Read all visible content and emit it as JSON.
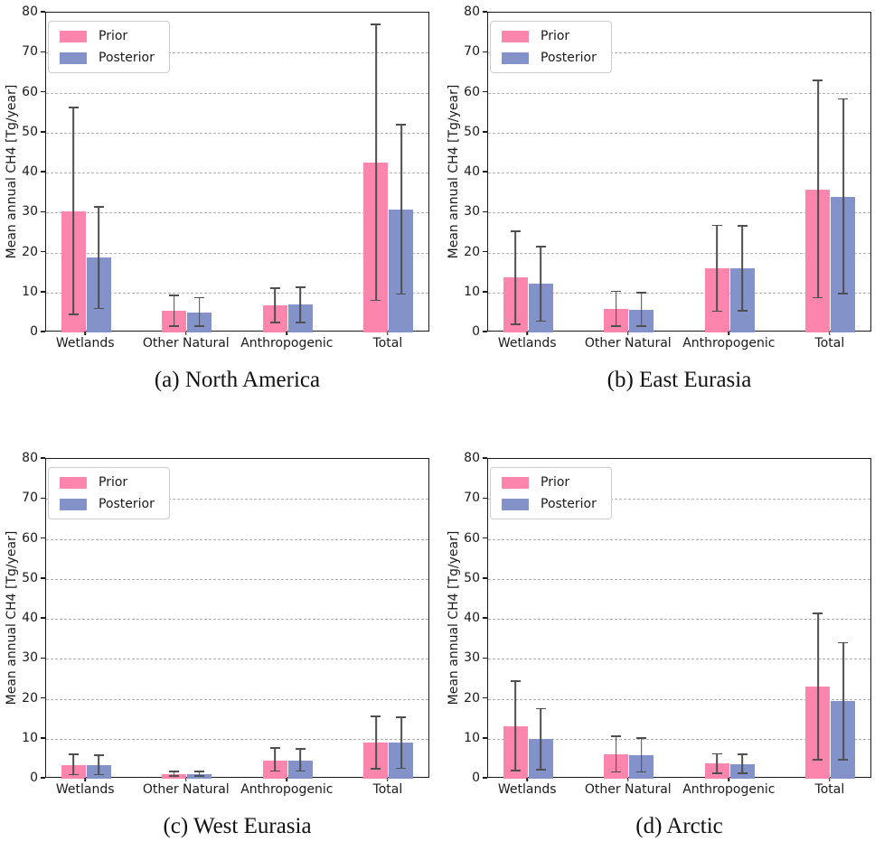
{
  "figure": {
    "legend": {
      "prior_label": "Prior",
      "posterior_label": "Posterior",
      "position": "upper left"
    },
    "yticks": [
      0,
      10,
      20,
      30,
      40,
      50,
      60,
      70,
      80
    ],
    "colors": {
      "prior": "#fb85ad",
      "posterior": "#8392c8",
      "error": "#4f4f4f",
      "gridline": "#b0b0b0",
      "spine": "#1a1a1a"
    }
  },
  "chart_data": [
    {
      "id": "a",
      "type": "bar",
      "title": "(a) North America",
      "ylabel": "Mean annual CH4 [Tg/year]",
      "xlabel": "",
      "ylim": [
        0,
        80
      ],
      "grid": true,
      "categories": [
        "Wetlands",
        "Other Natural",
        "Anthropogenic",
        "Total"
      ],
      "series": [
        {
          "name": "Prior",
          "values": [
            30.3,
            5.4,
            6.8,
            42.5
          ],
          "err_low": [
            4.3,
            1.4,
            2.2,
            7.8
          ],
          "err_high": [
            56.4,
            9.5,
            11.3,
            77.3
          ]
        },
        {
          "name": "Posterior",
          "values": [
            18.7,
            5.0,
            6.9,
            30.8
          ],
          "err_low": [
            5.8,
            1.3,
            2.3,
            9.4
          ],
          "err_high": [
            31.7,
            8.9,
            11.5,
            52.2
          ]
        }
      ]
    },
    {
      "id": "b",
      "type": "bar",
      "title": "(b) East Eurasia",
      "ylabel": "Mean annual CH4 [Tg/year]",
      "xlabel": "",
      "ylim": [
        0,
        80
      ],
      "grid": true,
      "categories": [
        "Wetlands",
        "Other Natural",
        "Anthropogenic",
        "Total"
      ],
      "series": [
        {
          "name": "Prior",
          "values": [
            13.7,
            5.9,
            16.1,
            35.8
          ],
          "err_low": [
            1.9,
            1.4,
            5.1,
            8.5
          ],
          "err_high": [
            25.5,
            10.5,
            27.0,
            63.2
          ]
        },
        {
          "name": "Posterior",
          "values": [
            12.1,
            5.6,
            16.0,
            34.0
          ],
          "err_low": [
            2.6,
            1.4,
            5.3,
            9.5
          ],
          "err_high": [
            21.6,
            10.1,
            26.8,
            58.6
          ]
        }
      ]
    },
    {
      "id": "c",
      "type": "bar",
      "title": "(c) West Eurasia",
      "ylabel": "Mean annual CH4 [Tg/year]",
      "xlabel": "",
      "ylim": [
        0,
        80
      ],
      "grid": true,
      "categories": [
        "Wetlands",
        "Other Natural",
        "Anthropogenic",
        "Total"
      ],
      "series": [
        {
          "name": "Prior",
          "values": [
            3.4,
            1.2,
            4.6,
            9.1
          ],
          "err_low": [
            0.8,
            0.4,
            1.7,
            2.3
          ],
          "err_high": [
            6.3,
            2.1,
            7.8,
            15.8
          ]
        },
        {
          "name": "Posterior",
          "values": [
            3.3,
            1.1,
            4.6,
            9.0
          ],
          "err_low": [
            0.8,
            0.4,
            1.7,
            2.4
          ],
          "err_high": [
            6.0,
            2.1,
            7.7,
            15.5
          ]
        }
      ]
    },
    {
      "id": "d",
      "type": "bar",
      "title": "(d) Arctic",
      "ylabel": "Mean annual CH4 [Tg/year]",
      "xlabel": "",
      "ylim": [
        0,
        80
      ],
      "grid": true,
      "categories": [
        "Wetlands",
        "Other Natural",
        "Anthropogenic",
        "Total"
      ],
      "series": [
        {
          "name": "Prior",
          "values": [
            13.2,
            6.2,
            3.8,
            23.1
          ],
          "err_low": [
            1.9,
            1.5,
            1.2,
            4.6
          ],
          "err_high": [
            24.6,
            10.9,
            6.4,
            41.6
          ]
        },
        {
          "name": "Posterior",
          "values": [
            10.0,
            5.9,
            3.7,
            19.4
          ],
          "err_low": [
            2.0,
            1.5,
            1.2,
            4.6
          ],
          "err_high": [
            17.7,
            10.4,
            6.3,
            34.2
          ]
        }
      ]
    }
  ]
}
